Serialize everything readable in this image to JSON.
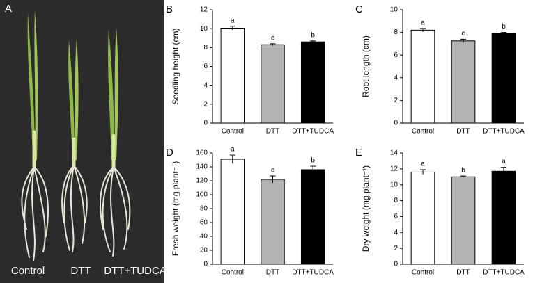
{
  "photo_panel": {
    "panel_label": "A",
    "labels": [
      "Control",
      "DTT",
      "DTT+TUDCA"
    ]
  },
  "chart_data": [
    {
      "type": "bar",
      "panel_label": "B",
      "y_label": "Seedling height (cm)",
      "categories": [
        "Control",
        "DTT",
        "DTT+TUDCA"
      ],
      "values": [
        10.05,
        8.3,
        8.6
      ],
      "errors": [
        0.2,
        0.1,
        0.1
      ],
      "annotations": [
        "a",
        "c",
        "b"
      ],
      "colors": [
        "#ffffff",
        "#b3b3b3",
        "#000000"
      ],
      "ylim": [
        0,
        12
      ],
      "yticks": [
        0,
        2,
        4,
        6,
        8,
        10,
        12
      ]
    },
    {
      "type": "bar",
      "panel_label": "C",
      "y_label": "Root length (cm)",
      "categories": [
        "Control",
        "DTT",
        "DTT+TUDCA"
      ],
      "values": [
        8.2,
        7.25,
        7.9
      ],
      "errors": [
        0.15,
        0.15,
        0.1
      ],
      "annotations": [
        "a",
        "c",
        "b"
      ],
      "colors": [
        "#ffffff",
        "#b3b3b3",
        "#000000"
      ],
      "ylim": [
        0,
        10
      ],
      "yticks": [
        0,
        2,
        4,
        6,
        8,
        10
      ]
    },
    {
      "type": "bar",
      "panel_label": "D",
      "y_label": "Fresh weight (mg plant⁻¹)",
      "categories": [
        "Control",
        "DTT",
        "DTT+TUDCA"
      ],
      "values": [
        151,
        122,
        136
      ],
      "errors": [
        6,
        5,
        5
      ],
      "annotations": [
        "a",
        "c",
        "b"
      ],
      "colors": [
        "#ffffff",
        "#b3b3b3",
        "#000000"
      ],
      "ylim": [
        0,
        160
      ],
      "yticks": [
        0,
        20,
        40,
        60,
        80,
        100,
        120,
        140,
        160
      ]
    },
    {
      "type": "bar",
      "panel_label": "E",
      "y_label": "Dry weight (mg plant⁻¹)",
      "categories": [
        "Control",
        "DTT",
        "DTT+TUDCA"
      ],
      "values": [
        11.6,
        11.0,
        11.7
      ],
      "errors": [
        0.3,
        0.1,
        0.5
      ],
      "annotations": [
        "a",
        "b",
        "a"
      ],
      "colors": [
        "#ffffff",
        "#b3b3b3",
        "#000000"
      ],
      "ylim": [
        0,
        14
      ],
      "yticks": [
        0,
        2,
        4,
        6,
        8,
        10,
        12,
        14
      ]
    }
  ]
}
